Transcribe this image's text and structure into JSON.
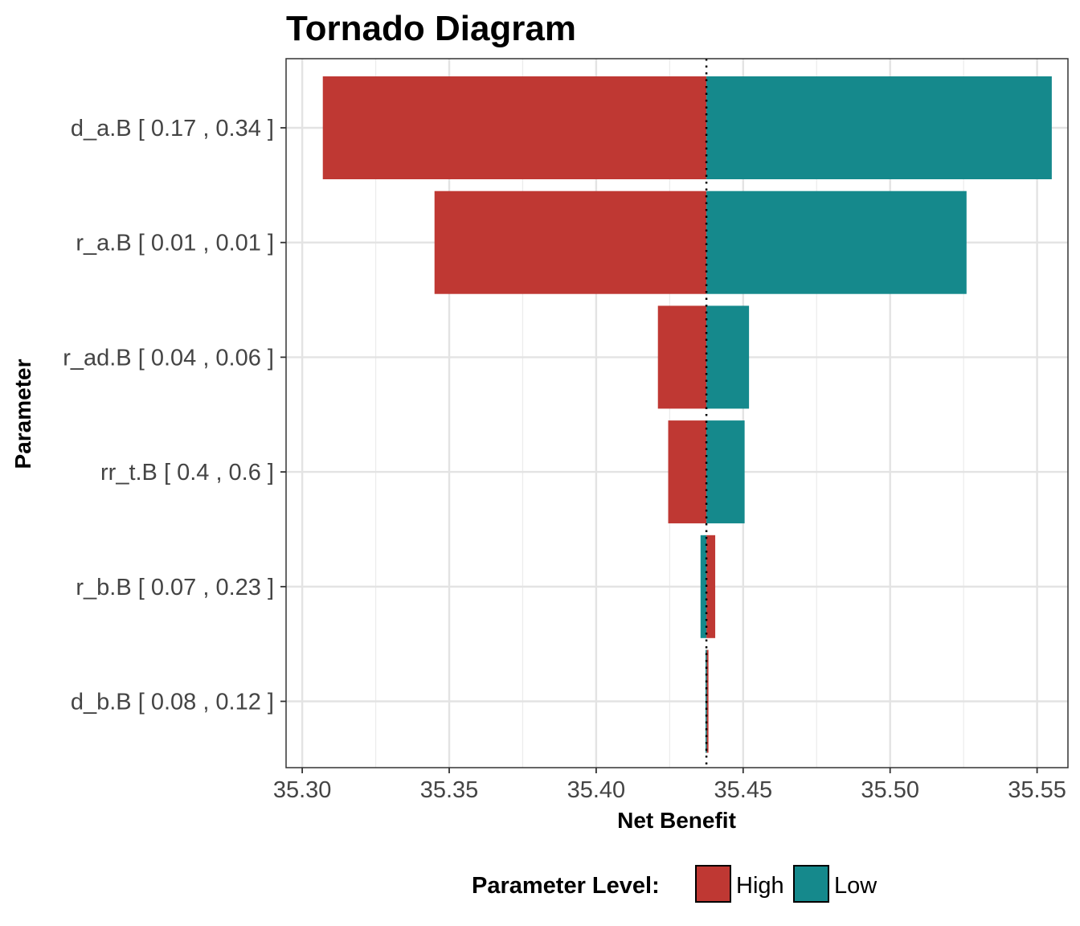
{
  "chart_data": {
    "type": "bar",
    "orientation": "horizontal",
    "title": "Tornado Diagram",
    "xlabel": "Net Benefit",
    "ylabel": "Parameter",
    "xlim": [
      35.2945,
      35.5605
    ],
    "xticks": [
      35.3,
      35.35,
      35.4,
      35.45,
      35.5,
      35.55
    ],
    "xtick_labels": [
      "35.30",
      "35.35",
      "35.40",
      "35.45",
      "35.50",
      "35.55"
    ],
    "base_value": 35.4375,
    "grid": true,
    "legend_position": "bottom",
    "legend_title": "Parameter Level:",
    "series": [
      {
        "name": "High",
        "color": "#BF3833"
      },
      {
        "name": "Low",
        "color": "#15898C"
      }
    ],
    "categories": [
      "d_a.B [ 0.17 , 0.34 ]",
      "r_a.B [ 0.01 , 0.01 ]",
      "r_ad.B [ 0.04 , 0.06 ]",
      "rr_t.B [ 0.4 , 0.6 ]",
      "r_b.B [ 0.07 , 0.23 ]",
      "d_b.B [ 0.08 , 0.12 ]"
    ],
    "high_values": [
      35.307,
      35.345,
      35.421,
      35.4245,
      35.4405,
      35.4382
    ],
    "low_values": [
      35.555,
      35.526,
      35.452,
      35.4505,
      35.4355,
      35.4372
    ]
  }
}
